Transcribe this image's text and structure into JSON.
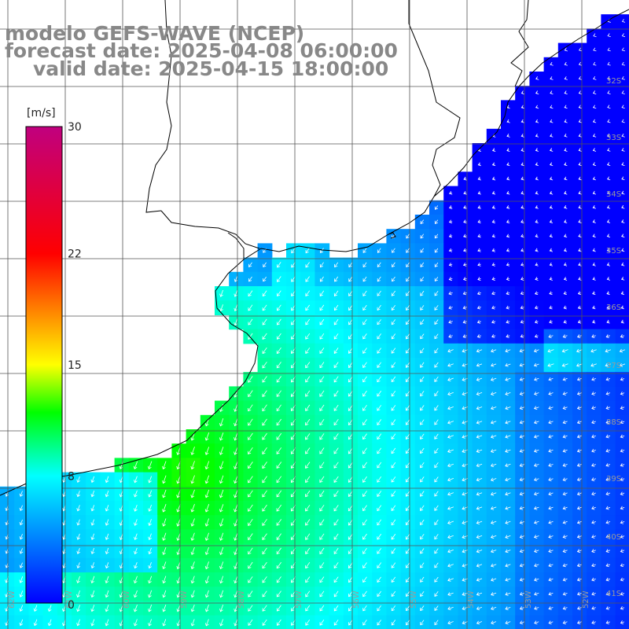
{
  "title": {
    "line1": "modelo GEFS-WAVE (NCEP)",
    "line2": "forecast date: 2025-04-08 06:00:00",
    "line3": "valid date: 2025-04-15 18:00:00"
  },
  "colorbar": {
    "units": "[m/s]",
    "ticks": [
      {
        "label": "30",
        "value": 30
      },
      {
        "label": "22",
        "value": 22
      },
      {
        "label": "15",
        "value": 15
      },
      {
        "label": "8",
        "value": 8
      },
      {
        "label": "0",
        "value": 0
      }
    ],
    "colors": [
      "#0000ff",
      "#0080ff",
      "#00ffff",
      "#00ff00",
      "#ffff00",
      "#ff8000",
      "#ff0000",
      "#c0007f"
    ]
  },
  "lat_labels": [
    "32S",
    "33S",
    "34S",
    "35S",
    "36S",
    "37S",
    "38S",
    "39S",
    "40S",
    "41S"
  ],
  "lon_labels": [
    "62W",
    "61W",
    "60W",
    "59W",
    "58W",
    "57W",
    "56W",
    "55W",
    "54W",
    "53W",
    "52W"
  ],
  "colors": {
    "land": "#ffffff",
    "coast": "#000000",
    "grid": "#555555",
    "arrow": "#ffffff"
  }
}
